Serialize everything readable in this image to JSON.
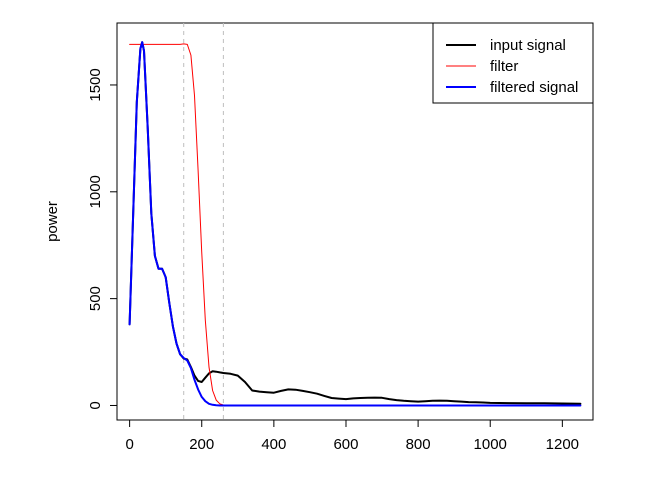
{
  "chart_data": {
    "type": "line",
    "title": "",
    "xlabel": "",
    "ylabel": "power",
    "xlim": [
      -35,
      1285
    ],
    "ylim": [
      -68,
      1790
    ],
    "x_ticks": [
      0,
      200,
      400,
      600,
      800,
      1000,
      1200
    ],
    "y_ticks": [
      0,
      500,
      1000,
      1500
    ],
    "grid": false,
    "legend_position": "top-right",
    "vlines": [
      {
        "x": 150,
        "color": "#bebebe",
        "style": "dashed"
      },
      {
        "x": 260,
        "color": "#bebebe",
        "style": "dashed"
      }
    ],
    "series": [
      {
        "name": "input signal",
        "color": "#000000",
        "width": 2,
        "x": [
          0,
          10,
          20,
          30,
          35,
          40,
          50,
          60,
          70,
          80,
          90,
          100,
          110,
          120,
          130,
          140,
          150,
          160,
          170,
          180,
          190,
          200,
          210,
          220,
          230,
          240,
          250,
          260,
          280,
          300,
          320,
          340,
          360,
          380,
          400,
          420,
          440,
          460,
          480,
          500,
          520,
          540,
          560,
          580,
          600,
          620,
          640,
          660,
          680,
          700,
          720,
          740,
          760,
          780,
          800,
          820,
          840,
          860,
          880,
          900,
          920,
          940,
          960,
          980,
          1000,
          1050,
          1100,
          1150,
          1200,
          1250
        ],
        "y": [
          380,
          900,
          1420,
          1670,
          1700,
          1660,
          1300,
          900,
          700,
          640,
          640,
          600,
          480,
          370,
          290,
          240,
          220,
          215,
          180,
          140,
          115,
          110,
          130,
          150,
          160,
          158,
          155,
          152,
          148,
          140,
          110,
          70,
          65,
          62,
          60,
          68,
          75,
          74,
          68,
          62,
          55,
          45,
          35,
          32,
          30,
          33,
          35,
          36,
          37,
          36,
          30,
          25,
          22,
          20,
          18,
          20,
          22,
          23,
          22,
          20,
          18,
          16,
          15,
          14,
          12,
          11,
          10,
          10,
          9,
          8
        ]
      },
      {
        "name": "filter",
        "color": "#ff0000",
        "width": 1,
        "x": [
          0,
          50,
          100,
          140,
          150,
          160,
          170,
          180,
          190,
          200,
          210,
          220,
          230,
          240,
          250,
          260,
          280,
          300,
          400,
          600,
          800,
          1000,
          1250
        ],
        "y": [
          1690,
          1690,
          1690,
          1690,
          1692,
          1690,
          1640,
          1450,
          1100,
          720,
          400,
          180,
          70,
          25,
          8,
          2,
          0,
          0,
          0,
          0,
          0,
          0,
          0
        ]
      },
      {
        "name": "filtered signal",
        "color": "#0000ff",
        "width": 2,
        "x": [
          0,
          10,
          20,
          30,
          35,
          40,
          50,
          60,
          70,
          80,
          90,
          100,
          110,
          120,
          130,
          140,
          150,
          160,
          170,
          180,
          190,
          200,
          210,
          220,
          230,
          240,
          250,
          260,
          280,
          300,
          400,
          600,
          800,
          1000,
          1250
        ],
        "y": [
          380,
          900,
          1420,
          1670,
          1700,
          1660,
          1300,
          900,
          700,
          640,
          640,
          600,
          480,
          370,
          290,
          240,
          222,
          210,
          175,
          120,
          75,
          40,
          20,
          8,
          3,
          1,
          0,
          0,
          0,
          0,
          0,
          0,
          0,
          0,
          0
        ]
      }
    ]
  }
}
